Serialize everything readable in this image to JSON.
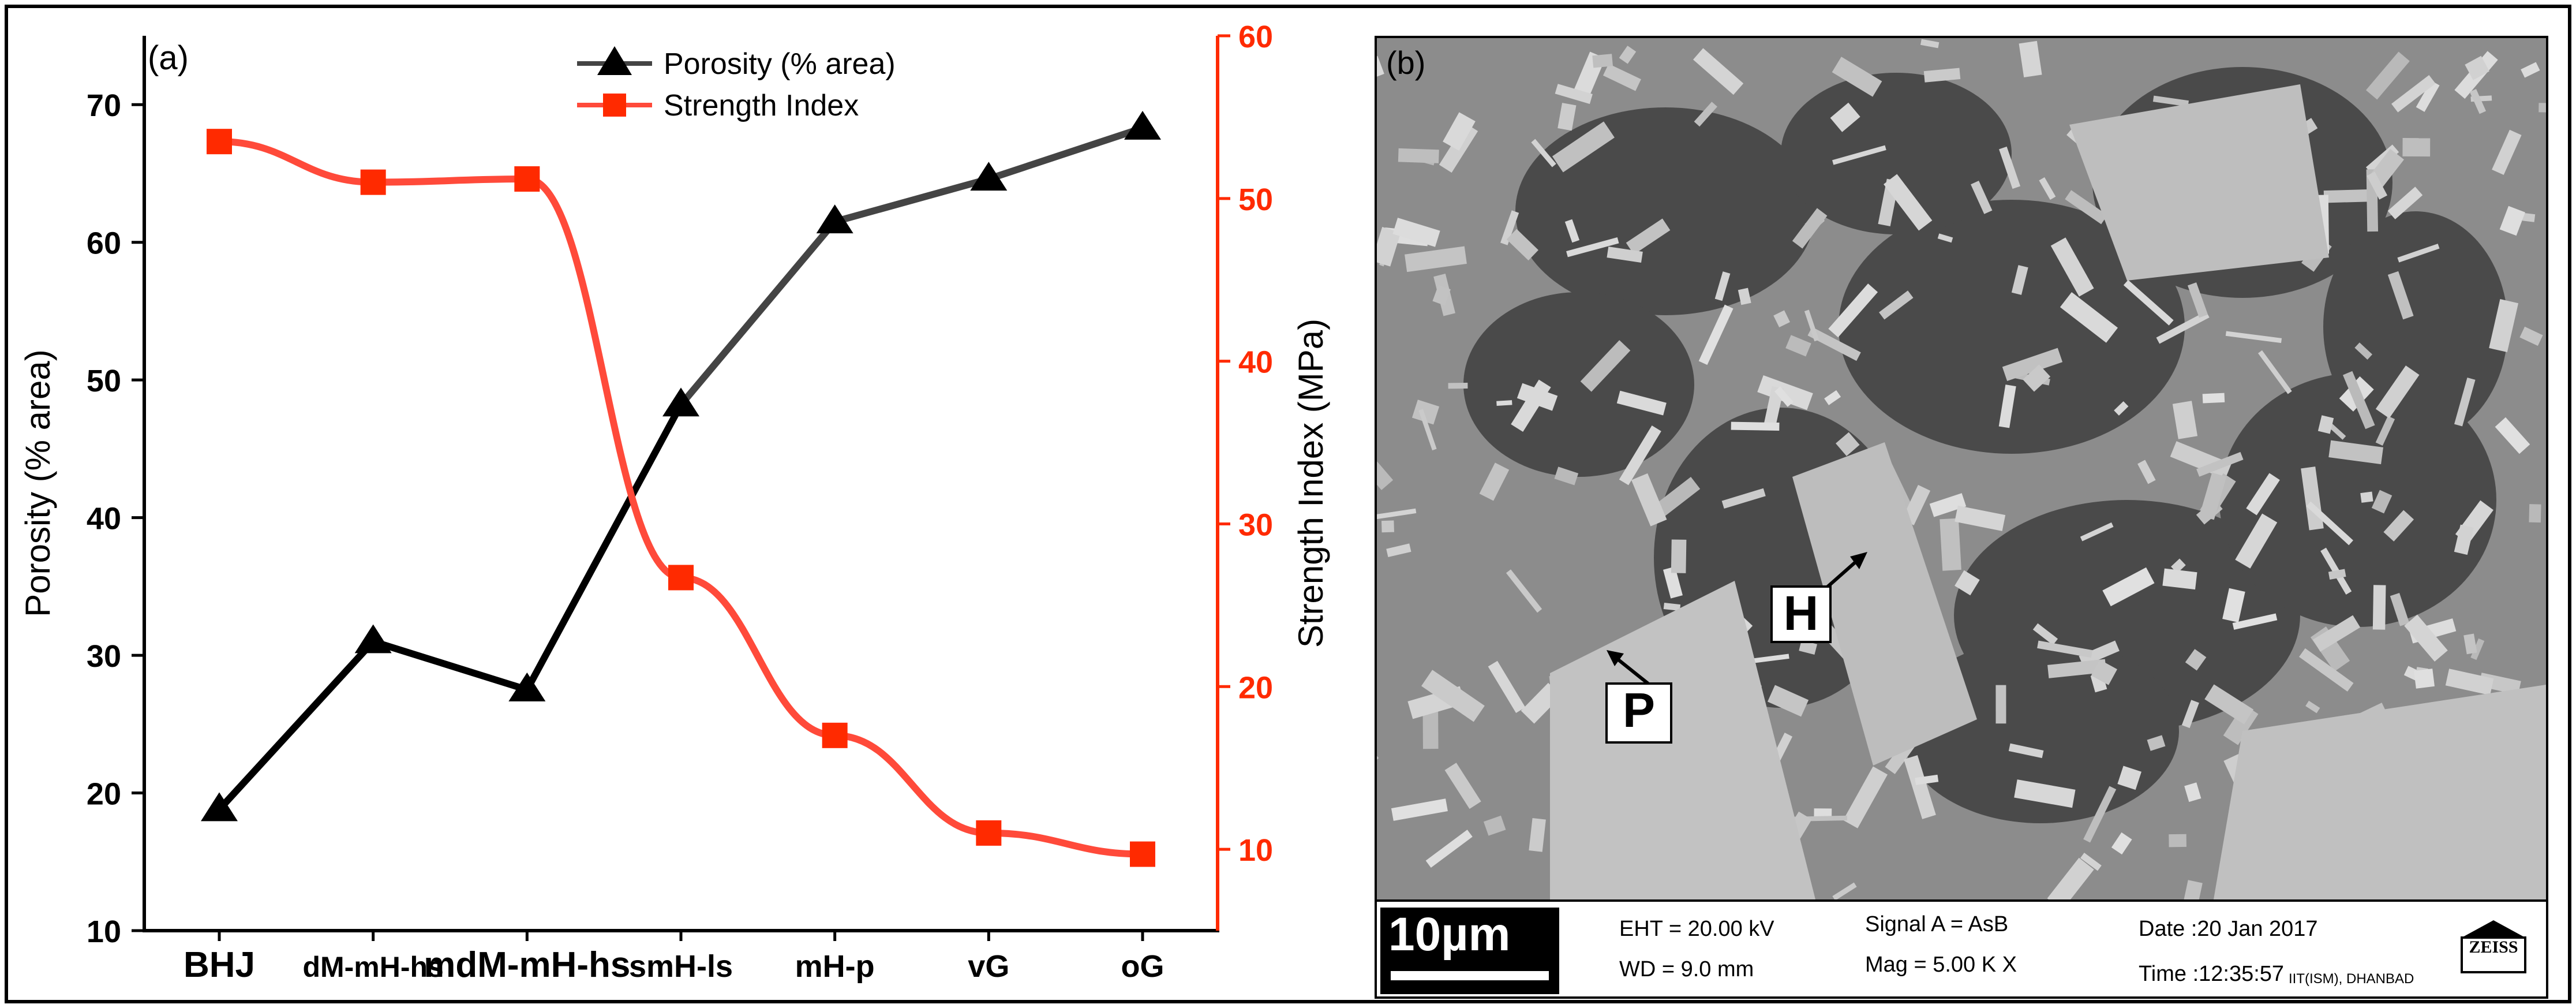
{
  "chart_data": {
    "type": "line",
    "panel_label": "(a)",
    "categories": [
      "BHJ",
      "dM-mH-hs",
      "mdM-mH-hs",
      "smH-ls",
      "mH-p",
      "vG",
      "oG"
    ],
    "y_left": {
      "label": "Porosity (% area)",
      "lim": [
        10,
        75
      ],
      "ticks": [
        10,
        20,
        30,
        40,
        50,
        60,
        70
      ]
    },
    "y_right": {
      "label": "Strength Index (MPa)",
      "lim": [
        5,
        60
      ],
      "ticks": [
        10,
        20,
        30,
        40,
        50,
        60
      ],
      "color": "#ff2a00"
    },
    "series": [
      {
        "name": "Porosity (% area)",
        "axis": "left",
        "marker": "triangle",
        "color": "#000000",
        "values": [
          18.8,
          31.0,
          27.5,
          48.2,
          61.5,
          64.6,
          68.3
        ]
      },
      {
        "name": "Strength Index",
        "axis": "right",
        "marker": "square",
        "color": "#ff2a00",
        "values": [
          53.5,
          51.0,
          51.2,
          26.7,
          17.0,
          11.0,
          9.7
        ]
      }
    ],
    "legend_position": "top-center"
  },
  "sem": {
    "panel_label": "(b)",
    "scale_bar": "10µm",
    "eht": "EHT = 20.00 kV",
    "wd": "WD =  9.0 mm",
    "signal": "Signal A = AsB",
    "mag": "Mag =    5.00 K X",
    "date": "Date :20 Jan 2017",
    "time": "Time :12:35:57",
    "institution": "IIT(ISM), DHANBAD",
    "logo_text": "ZEISS",
    "annotations": [
      "H",
      "P"
    ]
  }
}
